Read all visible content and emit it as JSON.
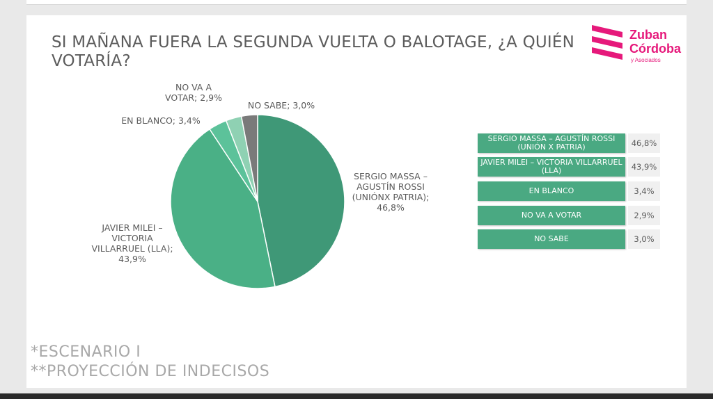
{
  "title": "SI MAÑANA FUERA LA SEGUNDA VUELTA O BALOTAGE, ¿A QUIÉN VOTARÍA?",
  "logo": {
    "name_line1": "Zuban",
    "name_line2": "Córdoba",
    "sub": "y Asociados",
    "color": "#e6197b"
  },
  "chart_data": {
    "type": "pie",
    "slices": [
      {
        "label": "SERGIO MASSA – AGUSTÍN ROSSI (UNIÓNX PATRIA); 46,8%",
        "value": 46.8,
        "color": "#3f9877"
      },
      {
        "label": "JAVIER MILEI – VICTORIA VILLARRUEL (LLA); 43,9%",
        "value": 43.9,
        "color": "#4ab086"
      },
      {
        "label": "EN BLANCO; 3,4%",
        "value": 3.4,
        "color": "#5cc29a"
      },
      {
        "label": "NO VA A VOTAR; 2,9%",
        "value": 2.9,
        "color": "#8fd1b3"
      },
      {
        "label": "NO SABE; 3,0%",
        "value": 3.0,
        "color": "#7a7a7a"
      }
    ]
  },
  "table": {
    "rows": [
      {
        "label": "SERGIO MASSA – AGUSTÍN ROSSI (UNIÓN X PATRIA)",
        "value": "46,8%"
      },
      {
        "label": "JAVIER MILEI – VICTORIA VILLARRUEL (LLA)",
        "value": "43,9%"
      },
      {
        "label": "EN BLANCO",
        "value": "3,4%"
      },
      {
        "label": "NO VA A VOTAR",
        "value": "2,9%"
      },
      {
        "label": "NO SABE",
        "value": "3,0%"
      }
    ]
  },
  "footnotes": [
    "*ESCENARIO I",
    "**PROYECCIÓN DE INDECISOS"
  ]
}
